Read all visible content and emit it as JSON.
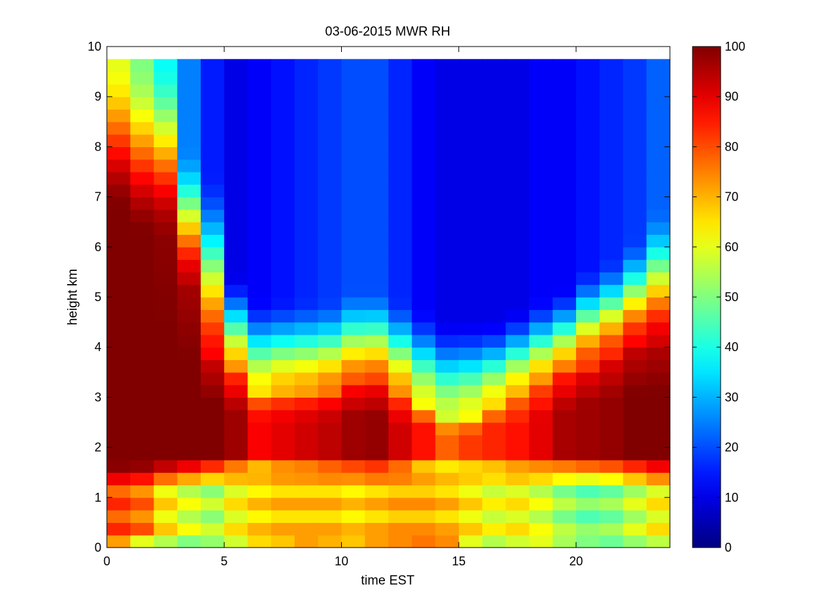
{
  "chart_data": {
    "type": "heatmap",
    "title": "03-06-2015 MWR RH",
    "xlabel": "time EST",
    "ylabel": "height km",
    "xlim": [
      0,
      24
    ],
    "ylim": [
      0,
      10
    ],
    "xticks": [
      "0",
      "5",
      "10",
      "15",
      "20"
    ],
    "yticks": [
      "0",
      "1",
      "2",
      "3",
      "4",
      "5",
      "6",
      "7",
      "8",
      "9",
      "10"
    ],
    "colorbar": {
      "min": 0,
      "max": 100,
      "ticks": [
        "0",
        "10",
        "20",
        "30",
        "40",
        "50",
        "60",
        "70",
        "80",
        "90",
        "100"
      ],
      "colormap": "jet"
    },
    "time_step_hours": 1,
    "time_start_hours": 0,
    "height_step_km": 0.25,
    "height_top_km": 9.75,
    "columns": [
      {
        "t": 0,
        "sfc": 72,
        "low": 80,
        "mid": 100,
        "top": 100,
        "dry_start": 7.5,
        "dry_end": 9.75,
        "upper": 60
      },
      {
        "t": 1,
        "sfc": 60,
        "low": 76,
        "mid": 100,
        "top": 100,
        "dry_start": 7.0,
        "dry_end": 9.75,
        "upper": 50
      },
      {
        "t": 2,
        "sfc": 55,
        "low": 64,
        "mid": 100,
        "top": 98,
        "dry_start": 7.0,
        "dry_end": 9.75,
        "upper": 38
      },
      {
        "t": 3,
        "sfc": 50,
        "low": 58,
        "mid": 100,
        "top": 94,
        "dry_start": 6.0,
        "dry_end": 8.0,
        "upper": 25
      },
      {
        "t": 4,
        "sfc": 52,
        "low": 54,
        "mid": 100,
        "top": 88,
        "dry_start": 4.5,
        "dry_end": 7.5,
        "upper": 15
      },
      {
        "t": 5,
        "sfc": 58,
        "low": 62,
        "mid": 97,
        "top": 75,
        "dry_start": 4.2,
        "dry_end": 5.5,
        "upper": 10
      },
      {
        "t": 6,
        "sfc": 66,
        "low": 66,
        "mid": 88,
        "top": 65,
        "dry_start": 3.9,
        "dry_end": 5.0,
        "upper": 12
      },
      {
        "t": 7,
        "sfc": 68,
        "low": 68,
        "mid": 90,
        "top": 70,
        "dry_start": 3.9,
        "dry_end": 5.0,
        "upper": 14
      },
      {
        "t": 8,
        "sfc": 72,
        "low": 68,
        "mid": 92,
        "top": 72,
        "dry_start": 3.9,
        "dry_end": 5.0,
        "upper": 16
      },
      {
        "t": 9,
        "sfc": 70,
        "low": 68,
        "mid": 94,
        "top": 76,
        "dry_start": 3.9,
        "dry_end": 5.0,
        "upper": 18
      },
      {
        "t": 10,
        "sfc": 68,
        "low": 66,
        "mid": 97,
        "top": 80,
        "dry_start": 4.0,
        "dry_end": 5.2,
        "upper": 20
      },
      {
        "t": 11,
        "sfc": 72,
        "low": 68,
        "mid": 98,
        "top": 82,
        "dry_start": 4.0,
        "dry_end": 5.2,
        "upper": 20
      },
      {
        "t": 12,
        "sfc": 74,
        "low": 70,
        "mid": 92,
        "top": 74,
        "dry_start": 3.8,
        "dry_end": 5.0,
        "upper": 16
      },
      {
        "t": 13,
        "sfc": 76,
        "low": 70,
        "mid": 86,
        "top": 62,
        "dry_start": 3.6,
        "dry_end": 4.8,
        "upper": 12
      },
      {
        "t": 14,
        "sfc": 74,
        "low": 68,
        "mid": 78,
        "top": 58,
        "dry_start": 3.4,
        "dry_end": 4.6,
        "upper": 10
      },
      {
        "t": 15,
        "sfc": 60,
        "low": 64,
        "mid": 82,
        "top": 62,
        "dry_start": 3.4,
        "dry_end": 4.6,
        "upper": 10
      },
      {
        "t": 16,
        "sfc": 55,
        "low": 60,
        "mid": 84,
        "top": 66,
        "dry_start": 3.6,
        "dry_end": 4.6,
        "upper": 10
      },
      {
        "t": 17,
        "sfc": 58,
        "low": 62,
        "mid": 86,
        "top": 70,
        "dry_start": 3.8,
        "dry_end": 4.8,
        "upper": 10
      },
      {
        "t": 18,
        "sfc": 60,
        "low": 58,
        "mid": 90,
        "top": 74,
        "dry_start": 4.0,
        "dry_end": 5.0,
        "upper": 12
      },
      {
        "t": 19,
        "sfc": 54,
        "low": 52,
        "mid": 96,
        "top": 78,
        "dry_start": 4.2,
        "dry_end": 5.2,
        "upper": 12
      },
      {
        "t": 20,
        "sfc": 50,
        "low": 48,
        "mid": 97,
        "top": 82,
        "dry_start": 4.4,
        "dry_end": 5.6,
        "upper": 14
      },
      {
        "t": 21,
        "sfc": 48,
        "low": 50,
        "mid": 98,
        "top": 84,
        "dry_start": 4.6,
        "dry_end": 5.8,
        "upper": 16
      },
      {
        "t": 22,
        "sfc": 52,
        "low": 56,
        "mid": 100,
        "top": 88,
        "dry_start": 4.8,
        "dry_end": 6.2,
        "upper": 18
      },
      {
        "t": 23,
        "sfc": 56,
        "low": 62,
        "mid": 100,
        "top": 92,
        "dry_start": 4.8,
        "dry_end": 6.8,
        "upper": 22
      }
    ]
  }
}
